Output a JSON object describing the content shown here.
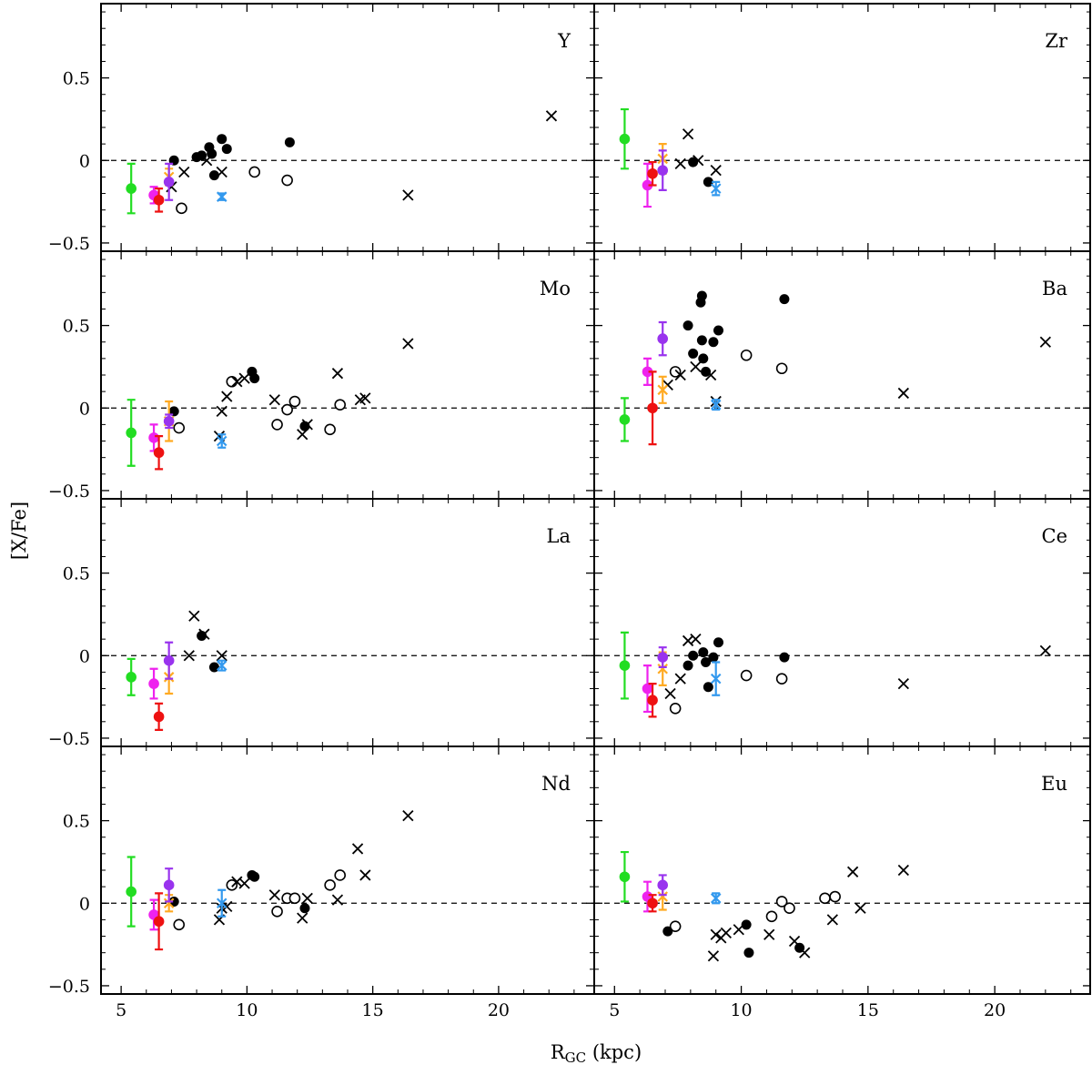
{
  "figure": {
    "xlabel_main": "R",
    "xlabel_sub": "GC",
    "xlabel_unit": " (kpc)",
    "ylabel": "[X/Fe]"
  },
  "colors": {
    "green": "#22dd22",
    "magenta": "#ee22ee",
    "red": "#ee1111",
    "purple": "#9933ee",
    "orange": "#ffaa22",
    "blue": "#3399ee",
    "black": "#000000"
  },
  "chart_data": [
    {
      "type": "scatter",
      "element": "Y",
      "xlim": [
        4.2,
        23.8
      ],
      "ylim": [
        -0.55,
        0.95
      ],
      "xticks": [
        "5",
        "10",
        "15",
        "20"
      ],
      "yticks": [
        "0.5",
        "0",
        "−0.5"
      ],
      "errorbars": [
        {
          "group": "green",
          "x": 5.4,
          "y": -0.17,
          "err": 0.15
        },
        {
          "group": "magenta",
          "x": 6.3,
          "y": -0.21,
          "err": 0.05
        },
        {
          "group": "red",
          "x": 6.5,
          "y": -0.24,
          "err": 0.07
        },
        {
          "group": "orange",
          "x": 6.9,
          "y": -0.1,
          "err": 0.05,
          "cross": true
        },
        {
          "group": "purple",
          "x": 6.9,
          "y": -0.13,
          "err": 0.11
        },
        {
          "group": "blue",
          "x": 9.0,
          "y": -0.22,
          "err": 0.02,
          "cross": true
        }
      ],
      "filled": [
        [
          7.1,
          0.0
        ],
        [
          8.0,
          0.02
        ],
        [
          8.2,
          0.03
        ],
        [
          8.5,
          0.08
        ],
        [
          8.6,
          0.04
        ],
        [
          8.7,
          -0.09
        ],
        [
          9.0,
          0.13
        ],
        [
          9.2,
          0.07
        ],
        [
          11.7,
          0.11
        ]
      ],
      "open": [
        [
          7.4,
          -0.29
        ],
        [
          10.3,
          -0.07
        ],
        [
          11.6,
          -0.12
        ]
      ],
      "crosses": [
        [
          7.0,
          -0.16
        ],
        [
          7.5,
          -0.07
        ],
        [
          8.4,
          -0.0
        ],
        [
          9.0,
          -0.07
        ],
        [
          16.4,
          -0.21
        ],
        [
          22.1,
          0.27
        ]
      ]
    },
    {
      "type": "scatter",
      "element": "Zr",
      "xlim": [
        4.2,
        23.8
      ],
      "ylim": [
        -0.55,
        0.95
      ],
      "xticks": [
        "5",
        "10",
        "15",
        "20"
      ],
      "yticks": [
        "0.5",
        "0",
        "−0.5"
      ],
      "errorbars": [
        {
          "group": "green",
          "x": 5.4,
          "y": 0.13,
          "err": 0.18
        },
        {
          "group": "magenta",
          "x": 6.3,
          "y": -0.15,
          "err": 0.13
        },
        {
          "group": "red",
          "x": 6.5,
          "y": -0.08,
          "err": 0.07
        },
        {
          "group": "orange",
          "x": 6.9,
          "y": 0.01,
          "err": 0.09,
          "cross": true
        },
        {
          "group": "purple",
          "x": 6.9,
          "y": -0.06,
          "err": 0.12
        },
        {
          "group": "blue",
          "x": 9.0,
          "y": -0.17,
          "err": 0.04,
          "cross": true
        }
      ],
      "filled": [
        [
          8.1,
          -0.01
        ],
        [
          8.7,
          -0.13
        ]
      ],
      "open": [],
      "crosses": [
        [
          7.6,
          -0.02
        ],
        [
          7.9,
          0.16
        ],
        [
          8.3,
          0.0
        ],
        [
          9.0,
          -0.06
        ]
      ]
    },
    {
      "type": "scatter",
      "element": "Mo",
      "xlim": [
        4.2,
        23.8
      ],
      "ylim": [
        -0.55,
        0.95
      ],
      "xticks": [
        "5",
        "10",
        "15",
        "20"
      ],
      "yticks": [
        "0.5",
        "0",
        "−0.5"
      ],
      "errorbars": [
        {
          "group": "green",
          "x": 5.4,
          "y": -0.15,
          "err": 0.2
        },
        {
          "group": "magenta",
          "x": 6.3,
          "y": -0.18,
          "err": 0.08
        },
        {
          "group": "red",
          "x": 6.5,
          "y": -0.27,
          "err": 0.1
        },
        {
          "group": "orange",
          "x": 6.9,
          "y": -0.08,
          "err": 0.12,
          "cross": true
        },
        {
          "group": "purple",
          "x": 6.9,
          "y": -0.08,
          "err": 0.04
        },
        {
          "group": "blue",
          "x": 9.0,
          "y": -0.2,
          "err": 0.04,
          "cross": true
        }
      ],
      "filled": [
        [
          7.1,
          -0.02
        ],
        [
          10.2,
          0.22
        ],
        [
          10.3,
          0.18
        ],
        [
          12.3,
          -0.11
        ]
      ],
      "open": [
        [
          7.3,
          -0.12
        ],
        [
          9.4,
          0.16
        ],
        [
          11.2,
          -0.1
        ],
        [
          11.6,
          -0.01
        ],
        [
          11.9,
          0.04
        ],
        [
          13.3,
          -0.13
        ],
        [
          13.7,
          0.02
        ]
      ],
      "crosses": [
        [
          8.9,
          -0.17
        ],
        [
          9.0,
          -0.02
        ],
        [
          9.2,
          0.07
        ],
        [
          9.6,
          0.16
        ],
        [
          9.9,
          0.18
        ],
        [
          11.1,
          0.05
        ],
        [
          12.2,
          -0.16
        ],
        [
          12.4,
          -0.1
        ],
        [
          13.6,
          0.21
        ],
        [
          14.5,
          0.05
        ],
        [
          14.7,
          0.06
        ],
        [
          16.4,
          0.39
        ]
      ]
    },
    {
      "type": "scatter",
      "element": "Ba",
      "xlim": [
        4.2,
        23.8
      ],
      "ylim": [
        -0.55,
        0.95
      ],
      "xticks": [
        "5",
        "10",
        "15",
        "20"
      ],
      "yticks": [
        "0.5",
        "0",
        "−0.5"
      ],
      "errorbars": [
        {
          "group": "green",
          "x": 5.4,
          "y": -0.07,
          "err": 0.13
        },
        {
          "group": "magenta",
          "x": 6.3,
          "y": 0.22,
          "err": 0.08
        },
        {
          "group": "red",
          "x": 6.5,
          "y": 0.0,
          "err": 0.22
        },
        {
          "group": "orange",
          "x": 6.9,
          "y": 0.11,
          "err": 0.08,
          "cross": true
        },
        {
          "group": "purple",
          "x": 6.9,
          "y": 0.42,
          "err": 0.1
        },
        {
          "group": "blue",
          "x": 9.0,
          "y": 0.02,
          "err": 0.03,
          "cross": true
        }
      ],
      "filled": [
        [
          7.9,
          0.5
        ],
        [
          8.1,
          0.33
        ],
        [
          8.4,
          0.64
        ],
        [
          8.45,
          0.68
        ],
        [
          8.45,
          0.41
        ],
        [
          8.5,
          0.3
        ],
        [
          8.6,
          0.22
        ],
        [
          8.9,
          0.4
        ],
        [
          9.1,
          0.47
        ],
        [
          11.7,
          0.66
        ]
      ],
      "open": [
        [
          7.4,
          0.22
        ],
        [
          10.2,
          0.32
        ],
        [
          11.6,
          0.24
        ]
      ],
      "crosses": [
        [
          7.1,
          0.14
        ],
        [
          7.6,
          0.2
        ],
        [
          8.2,
          0.25
        ],
        [
          8.8,
          0.2
        ],
        [
          9.0,
          0.04
        ],
        [
          16.4,
          0.09
        ],
        [
          22.0,
          0.4
        ]
      ]
    },
    {
      "type": "scatter",
      "element": "La",
      "xlim": [
        4.2,
        23.8
      ],
      "ylim": [
        -0.55,
        0.95
      ],
      "xticks": [
        "5",
        "10",
        "15",
        "20"
      ],
      "yticks": [
        "0.5",
        "0",
        "−0.5"
      ],
      "errorbars": [
        {
          "group": "green",
          "x": 5.4,
          "y": -0.13,
          "err": 0.11
        },
        {
          "group": "magenta",
          "x": 6.3,
          "y": -0.17,
          "err": 0.09
        },
        {
          "group": "red",
          "x": 6.5,
          "y": -0.37,
          "err": 0.08
        },
        {
          "group": "orange",
          "x": 6.9,
          "y": -0.13,
          "err": 0.1,
          "cross": true
        },
        {
          "group": "purple",
          "x": 6.9,
          "y": -0.03,
          "err": 0.11
        },
        {
          "group": "blue",
          "x": 9.0,
          "y": -0.06,
          "err": 0.03,
          "cross": true
        }
      ],
      "filled": [
        [
          8.2,
          0.12
        ],
        [
          8.7,
          -0.07
        ]
      ],
      "open": [],
      "crosses": [
        [
          7.7,
          0.0
        ],
        [
          7.9,
          0.24
        ],
        [
          8.3,
          0.13
        ],
        [
          9.0,
          0.0
        ]
      ]
    },
    {
      "type": "scatter",
      "element": "Ce",
      "xlim": [
        4.2,
        23.8
      ],
      "ylim": [
        -0.55,
        0.95
      ],
      "xticks": [
        "5",
        "10",
        "15",
        "20"
      ],
      "yticks": [
        "0.5",
        "0",
        "−0.5"
      ],
      "errorbars": [
        {
          "group": "green",
          "x": 5.4,
          "y": -0.06,
          "err": 0.2
        },
        {
          "group": "magenta",
          "x": 6.3,
          "y": -0.2,
          "err": 0.14
        },
        {
          "group": "red",
          "x": 6.5,
          "y": -0.27,
          "err": 0.1
        },
        {
          "group": "orange",
          "x": 6.9,
          "y": -0.08,
          "err": 0.1,
          "cross": true
        },
        {
          "group": "purple",
          "x": 6.9,
          "y": -0.01,
          "err": 0.06
        },
        {
          "group": "blue",
          "x": 9.0,
          "y": -0.14,
          "err": 0.1,
          "cross": true
        }
      ],
      "filled": [
        [
          7.9,
          -0.06
        ],
        [
          8.1,
          0.0
        ],
        [
          8.5,
          0.02
        ],
        [
          8.6,
          -0.04
        ],
        [
          8.7,
          -0.19
        ],
        [
          8.9,
          -0.01
        ],
        [
          9.1,
          0.08
        ],
        [
          11.7,
          -0.01
        ]
      ],
      "open": [
        [
          7.4,
          -0.32
        ],
        [
          10.2,
          -0.12
        ],
        [
          11.6,
          -0.14
        ]
      ],
      "crosses": [
        [
          7.2,
          -0.23
        ],
        [
          7.6,
          -0.14
        ],
        [
          7.9,
          0.09
        ],
        [
          8.2,
          0.1
        ],
        [
          16.4,
          -0.17
        ],
        [
          22.0,
          0.03
        ]
      ]
    },
    {
      "type": "scatter",
      "element": "Nd",
      "xlim": [
        4.2,
        23.8
      ],
      "ylim": [
        -0.55,
        0.95
      ],
      "xticks": [
        "5",
        "10",
        "15",
        "20"
      ],
      "yticks": [
        "0.5",
        "0",
        "−0.5"
      ],
      "errorbars": [
        {
          "group": "green",
          "x": 5.4,
          "y": 0.07,
          "err": 0.21
        },
        {
          "group": "magenta",
          "x": 6.3,
          "y": -0.07,
          "err": 0.09
        },
        {
          "group": "red",
          "x": 6.5,
          "y": -0.11,
          "err": 0.17
        },
        {
          "group": "orange",
          "x": 6.9,
          "y": 0.0,
          "err": 0.05,
          "cross": true
        },
        {
          "group": "purple",
          "x": 6.9,
          "y": 0.11,
          "err": 0.1
        },
        {
          "group": "blue",
          "x": 9.0,
          "y": 0.0,
          "err": 0.08,
          "cross": true
        }
      ],
      "filled": [
        [
          7.1,
          0.01
        ],
        [
          10.2,
          0.17
        ],
        [
          10.3,
          0.16
        ],
        [
          12.3,
          -0.03
        ]
      ],
      "open": [
        [
          7.3,
          -0.13
        ],
        [
          9.4,
          0.11
        ],
        [
          11.2,
          -0.05
        ],
        [
          11.6,
          0.03
        ],
        [
          11.9,
          0.03
        ],
        [
          13.3,
          0.11
        ],
        [
          13.7,
          0.17
        ]
      ],
      "crosses": [
        [
          8.9,
          -0.1
        ],
        [
          9.0,
          -0.03
        ],
        [
          9.2,
          -0.02
        ],
        [
          9.6,
          0.13
        ],
        [
          9.9,
          0.12
        ],
        [
          11.1,
          0.05
        ],
        [
          12.2,
          -0.09
        ],
        [
          12.4,
          0.03
        ],
        [
          13.6,
          0.02
        ],
        [
          14.4,
          0.33
        ],
        [
          14.7,
          0.17
        ],
        [
          16.4,
          0.53
        ]
      ]
    },
    {
      "type": "scatter",
      "element": "Eu",
      "xlim": [
        4.2,
        23.8
      ],
      "ylim": [
        -0.55,
        0.95
      ],
      "xticks": [
        "5",
        "10",
        "15",
        "20"
      ],
      "yticks": [
        "0.5",
        "0",
        "−0.5"
      ],
      "errorbars": [
        {
          "group": "green",
          "x": 5.4,
          "y": 0.16,
          "err": 0.15
        },
        {
          "group": "magenta",
          "x": 6.3,
          "y": 0.04,
          "err": 0.09
        },
        {
          "group": "red",
          "x": 6.5,
          "y": 0.0,
          "err": 0.05
        },
        {
          "group": "orange",
          "x": 6.9,
          "y": 0.04,
          "err": 0.08,
          "cross": true
        },
        {
          "group": "purple",
          "x": 6.9,
          "y": 0.11,
          "err": 0.06
        },
        {
          "group": "blue",
          "x": 9.0,
          "y": 0.03,
          "err": 0.03,
          "cross": true
        }
      ],
      "filled": [
        [
          7.1,
          -0.17
        ],
        [
          10.2,
          -0.13
        ],
        [
          10.3,
          -0.3
        ],
        [
          12.3,
          -0.27
        ]
      ],
      "open": [
        [
          7.4,
          -0.14
        ],
        [
          11.2,
          -0.08
        ],
        [
          11.6,
          0.01
        ],
        [
          11.9,
          -0.03
        ],
        [
          13.3,
          0.03
        ],
        [
          13.7,
          0.04
        ]
      ],
      "crosses": [
        [
          8.9,
          -0.32
        ],
        [
          9.0,
          -0.19
        ],
        [
          9.2,
          -0.21
        ],
        [
          9.4,
          -0.18
        ],
        [
          9.9,
          -0.16
        ],
        [
          11.1,
          -0.19
        ],
        [
          12.1,
          -0.23
        ],
        [
          12.5,
          -0.3
        ],
        [
          13.6,
          -0.1
        ],
        [
          14.4,
          0.19
        ],
        [
          14.7,
          -0.03
        ],
        [
          16.4,
          0.2
        ]
      ]
    }
  ]
}
